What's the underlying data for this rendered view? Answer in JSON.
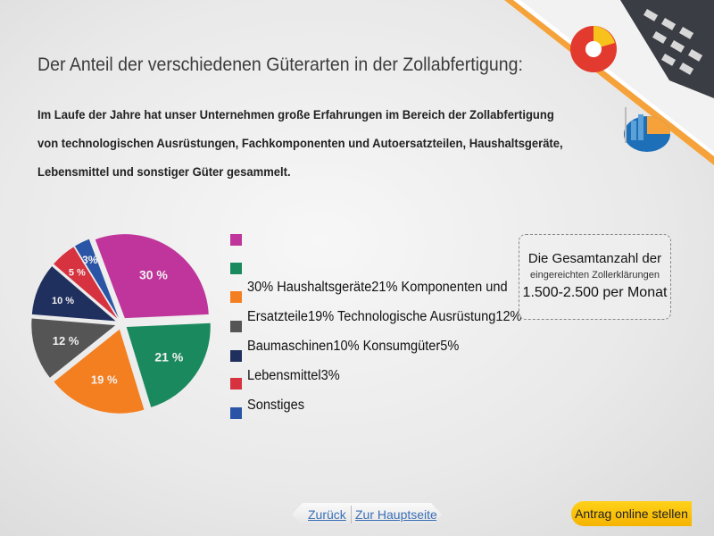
{
  "page": {
    "title": "Der Anteil der verschiedenen Güterarten in der Zollabfertigung:",
    "intro_lines": [
      "Im Laufe der Jahre hat unser Unternehmen große Erfahrungen im  Bereich der Zollabfertigung",
      "von technologischen Ausrüstungen, Fachkomponenten und Autoersatzteilen, Haushaltsgeräte,",
      "Lebensmittel und sonstiger Güter gesammelt."
    ]
  },
  "legend": {
    "lines": [
      "30% Haushaltsgeräte21% Komponenten und",
      "Ersatzteile19% Technologische Ausrüstung12%",
      "Baumaschinen10% Konsumgüter5% Lebensmittel3%",
      "Sonstiges"
    ]
  },
  "total_box": {
    "line1": "Die Gesamtanzahl  der",
    "line2": "eingereichten Zollerklärungen",
    "line3": "1.500-2.500 per Monat"
  },
  "nav": {
    "back": "Zurück",
    "home": "Zur Hauptseite"
  },
  "cta": {
    "label": "Antrag online stellen"
  },
  "chart_data": {
    "type": "pie",
    "slices": [
      {
        "label": "30 %",
        "value": 30,
        "color": "#c0359b"
      },
      {
        "label": "21 %",
        "value": 21,
        "color": "#1a8a5e"
      },
      {
        "label": "19 %",
        "value": 19,
        "color": "#f47f20"
      },
      {
        "label": "12 %",
        "value": 12,
        "color": "#555555"
      },
      {
        "label": "10 %",
        "value": 10,
        "color": "#20305e"
      },
      {
        "label": "5 %",
        "value": 5,
        "color": "#d7323f"
      },
      {
        "label": "3%",
        "value": 3,
        "color": "#2a55a6"
      }
    ]
  }
}
